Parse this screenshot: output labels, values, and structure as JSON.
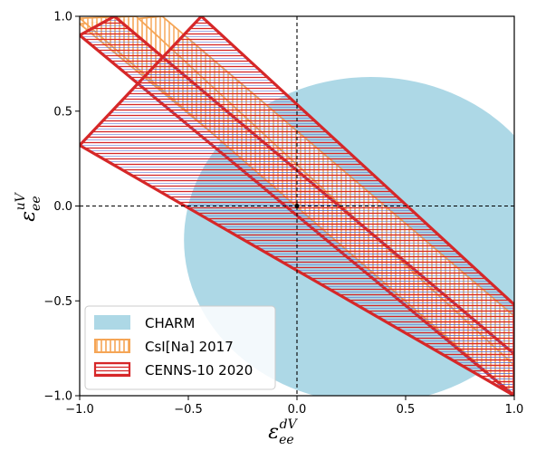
{
  "chart_data": {
    "type": "area",
    "title": "",
    "xlabel": {
      "base": "ε",
      "sub": "ee",
      "sup": "dV"
    },
    "ylabel": {
      "base": "ε",
      "sub": "ee",
      "sup": "uV"
    },
    "xlim": [
      -1.0,
      1.0
    ],
    "ylim": [
      -1.0,
      1.0
    ],
    "xticks": [
      -1.0,
      -0.5,
      0.0,
      0.5,
      1.0
    ],
    "yticks": [
      -1.0,
      -0.5,
      0.0,
      0.5,
      1.0
    ],
    "xtick_labels": [
      "−1.0",
      "−0.5",
      "0.0",
      "0.5",
      "1.0"
    ],
    "ytick_labels": [
      "−1.0",
      "−0.5",
      "0.0",
      "0.5",
      "1.0"
    ],
    "grid": false,
    "legend_placement": "lower-left",
    "reference_lines": {
      "x": 0.0,
      "y": 0.0,
      "style": "dashed"
    },
    "reference_point": {
      "x": 0.0,
      "y": 0.0
    },
    "colors": {
      "charm": "#add8e6",
      "csi_edge": "#f5a555",
      "csi_hatch": "#f5a555",
      "cenns_edge": "#d62728",
      "cenns_hatch": "#d62728",
      "cenns_hatch_alt": "#5566cc"
    },
    "series": [
      {
        "name": "CHARM",
        "kind": "filled-disc",
        "center": {
          "x": 0.34,
          "y": -0.18
        },
        "radius": 0.86
      },
      {
        "name": "CsI[Na] 2017",
        "kind": "diagonal-bands",
        "bands": [
          {
            "lower": [
              [
                -1.0,
                0.96
              ],
              [
                1.0,
                -0.93
              ]
            ],
            "upper": [
              [
                -0.62,
                1.0
              ],
              [
                1.0,
                -0.58
              ]
            ]
          },
          {
            "lower": [
              [
                -1.0,
                0.99
              ],
              [
                1.0,
                -1.0
              ]
            ],
            "upper": [
              [
                -0.74,
                1.0
              ],
              [
                1.0,
                -0.84
              ]
            ]
          }
        ]
      },
      {
        "name": "CENNS-10 2020",
        "kind": "diagonal-bands",
        "bands": [
          {
            "lower": [
              [
                -1.0,
                0.9
              ],
              [
                1.0,
                -1.0
              ]
            ],
            "upper": [
              [
                -0.84,
                1.0
              ],
              [
                1.0,
                -0.78
              ]
            ]
          },
          {
            "lower": [
              [
                -1.0,
                0.32
              ],
              [
                1.0,
                -1.0
              ]
            ],
            "upper": [
              [
                -0.44,
                1.0
              ],
              [
                1.0,
                -0.52
              ]
            ]
          }
        ]
      }
    ]
  }
}
